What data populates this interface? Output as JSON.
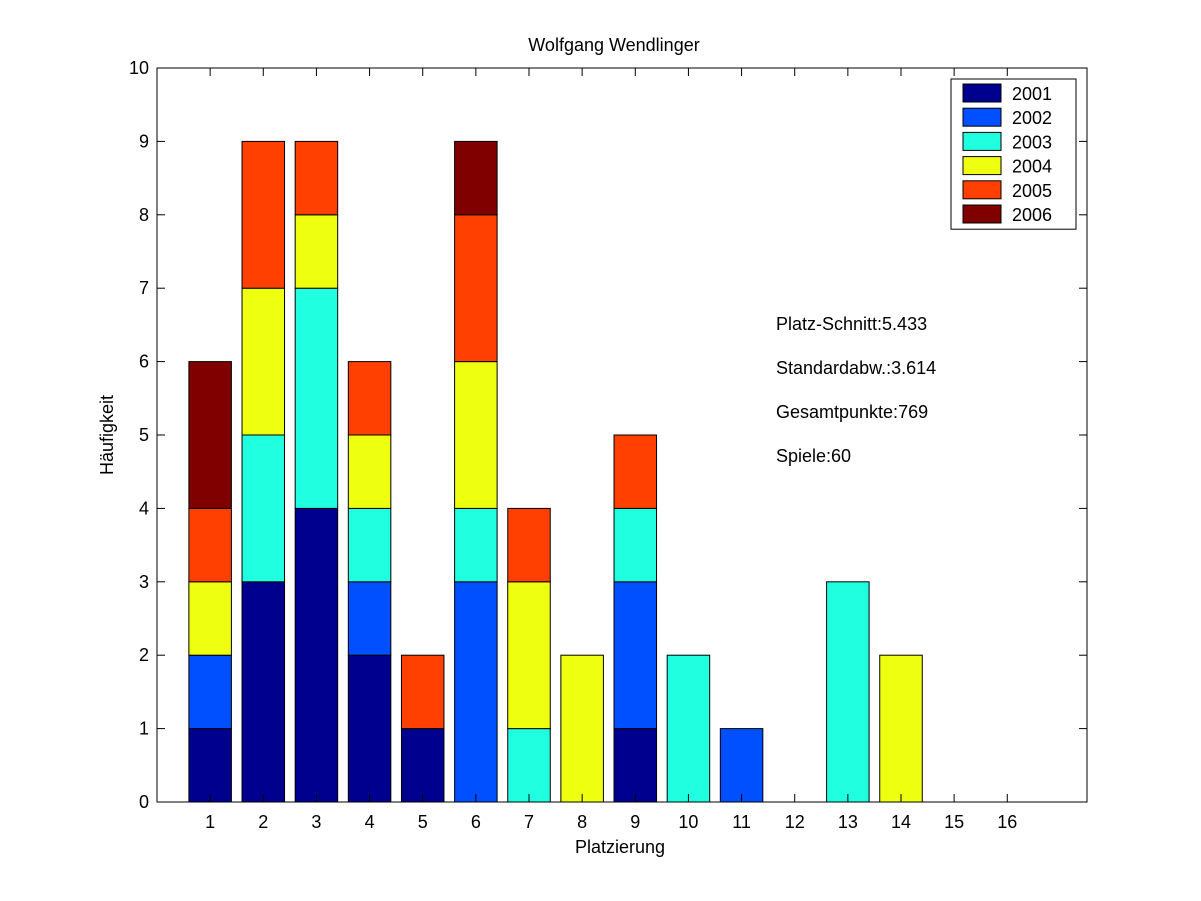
{
  "chart_data": {
    "type": "bar",
    "stacked": true,
    "title": "Wolfgang Wendlinger",
    "xlabel": "Platzierung",
    "ylabel": "Häufigkeit",
    "categories": [
      "1",
      "2",
      "3",
      "4",
      "5",
      "6",
      "7",
      "8",
      "9",
      "10",
      "11",
      "12",
      "13",
      "14",
      "15",
      "16"
    ],
    "xlim": [
      0,
      17.5
    ],
    "ylim": [
      0,
      10
    ],
    "yticks": [
      "0",
      "1",
      "2",
      "3",
      "4",
      "5",
      "6",
      "7",
      "8",
      "9",
      "10"
    ],
    "legend_position": "top-right",
    "series": [
      {
        "name": "2001",
        "color": "#00008f",
        "values": [
          1,
          3,
          4,
          2,
          1,
          0,
          0,
          0,
          1,
          0,
          0,
          0,
          0,
          0,
          0,
          0
        ]
      },
      {
        "name": "2002",
        "color": "#0050ff",
        "values": [
          1,
          0,
          0,
          1,
          0,
          3,
          0,
          0,
          2,
          0,
          1,
          0,
          0,
          0,
          0,
          0
        ]
      },
      {
        "name": "2003",
        "color": "#20ffdf",
        "values": [
          0,
          2,
          3,
          1,
          0,
          1,
          1,
          0,
          1,
          2,
          0,
          0,
          3,
          0,
          0,
          0
        ]
      },
      {
        "name": "2004",
        "color": "#efff10",
        "values": [
          1,
          2,
          1,
          1,
          0,
          2,
          2,
          2,
          0,
          0,
          0,
          0,
          0,
          2,
          0,
          0
        ]
      },
      {
        "name": "2005",
        "color": "#ff4000",
        "values": [
          1,
          2,
          1,
          1,
          1,
          2,
          1,
          0,
          1,
          0,
          0,
          0,
          0,
          0,
          0,
          0
        ]
      },
      {
        "name": "2006",
        "color": "#800000",
        "values": [
          2,
          0,
          0,
          0,
          0,
          1,
          0,
          0,
          0,
          0,
          0,
          0,
          0,
          0,
          0,
          0
        ]
      }
    ],
    "annotations": [
      "Platz-Schnitt:5.433",
      "Standardabw.:3.614",
      "Gesamtpunkte:769",
      "Spiele:60"
    ]
  }
}
